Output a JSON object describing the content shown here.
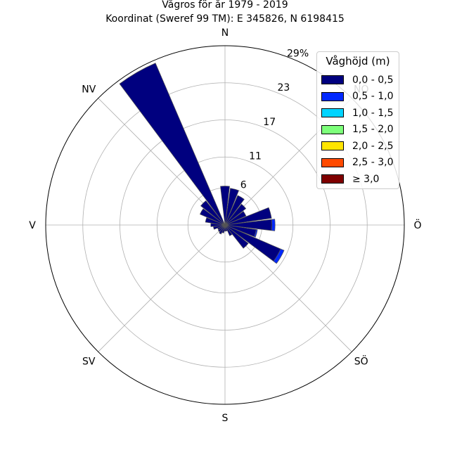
{
  "chart_data": {
    "type": "polar-bar",
    "title": "Vågros för år 1979 - 2019",
    "subtitle": "Koordinat (Sweref 99 TM): E 345826, N 6198415",
    "directions": [
      "N",
      "NÖ",
      "Ö",
      "SÖ",
      "S",
      "SV",
      "V",
      "NV"
    ],
    "radial_ticks": [
      "6",
      "11",
      "17",
      "23",
      "29%"
    ],
    "radial_tick_values": [
      6,
      11,
      17,
      23,
      29
    ],
    "rmax": 29,
    "sector_angles_deg": [
      0,
      15,
      30,
      45,
      60,
      75,
      90,
      105,
      120,
      135,
      150,
      165,
      180,
      195,
      210,
      225,
      240,
      255,
      270,
      285,
      300,
      315,
      330
    ],
    "legend": {
      "title": "Våghöjd (m)",
      "entries": [
        "0,0 - 0,5",
        "0,5 - 1,0",
        "1,0 - 1,5",
        "1,5 - 2,0",
        "2,0 - 2,5",
        "2,5 - 3,0",
        "≥ 3,0"
      ],
      "placement": "top-right"
    },
    "colors": [
      "#00007f",
      "#0028ff",
      "#00d4ff",
      "#7dff7a",
      "#ffe500",
      "#ff4a00",
      "#7f0000"
    ],
    "series": [
      {
        "name": "0,0 - 0,5",
        "values": [
          6.3,
          6.0,
          5.2,
          4.3,
          3.7,
          7.6,
          7.6,
          5.1,
          9.8,
          4.8,
          1.9,
          1.0,
          1.0,
          1.3,
          1.6,
          1.4,
          1.3,
          1.9,
          2.3,
          3.2,
          4.4,
          5.0,
          28.5
        ]
      },
      {
        "name": "0,5 - 1,0",
        "values": [
          0,
          0,
          0,
          0,
          0,
          0,
          0.5,
          0.2,
          0.6,
          0,
          0,
          0,
          0,
          0,
          0,
          0,
          0,
          0,
          0,
          0,
          0,
          0,
          0
        ]
      }
    ]
  }
}
